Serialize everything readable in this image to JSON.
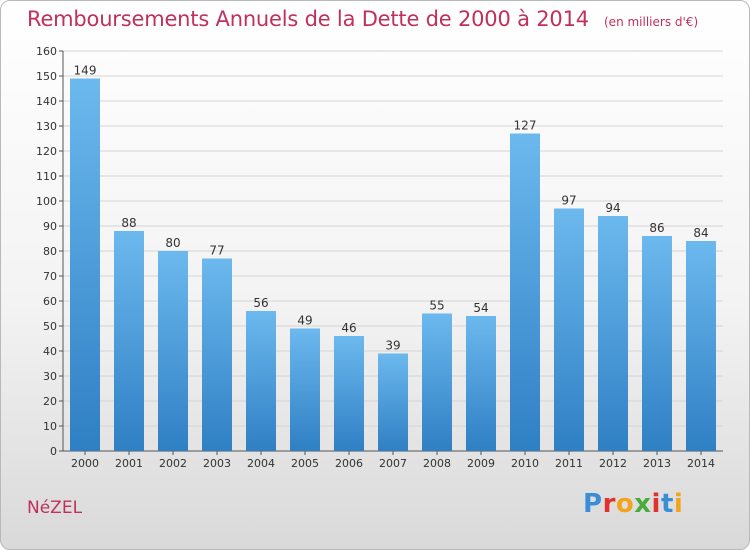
{
  "header": {
    "title": "Remboursements Annuels de la Dette de 2000 à 2014",
    "unit": "(en milliers d'€)"
  },
  "footer": {
    "commune": "NéZEL",
    "logo_letters": [
      "P",
      "r",
      "o",
      "x",
      "i",
      "t",
      "i"
    ],
    "logo_colors": [
      "#3a8ed8",
      "#e0322f",
      "#f2a51c",
      "#4aab3c",
      "#e0322f",
      "#3a8ed8",
      "#f2a51c"
    ]
  },
  "colors": {
    "bar_light": "#6cb9ee",
    "bar_dark": "#2f7fc4",
    "grid": "#d4d4d4",
    "text_accent": "#c0305a"
  },
  "chart_data": {
    "type": "bar",
    "title": "Remboursements Annuels de la Dette de 2000 à 2014",
    "categories": [
      "2000",
      "2001",
      "2002",
      "2003",
      "2004",
      "2005",
      "2006",
      "2007",
      "2008",
      "2009",
      "2010",
      "2011",
      "2012",
      "2013",
      "2014"
    ],
    "values": [
      149,
      88,
      80,
      77,
      56,
      49,
      46,
      39,
      55,
      54,
      127,
      97,
      94,
      86,
      84
    ],
    "ylim": [
      0,
      160
    ],
    "yticks": [
      0,
      10,
      20,
      30,
      40,
      50,
      60,
      70,
      80,
      90,
      100,
      110,
      120,
      130,
      140,
      150,
      160
    ],
    "grid": true,
    "xlabel": "",
    "ylabel": ""
  }
}
